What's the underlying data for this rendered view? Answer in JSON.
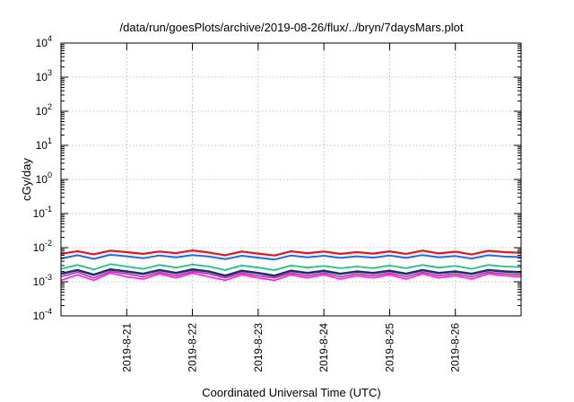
{
  "chart_data": {
    "type": "line",
    "title": "/data/run/goesPlots/archive/2019-08-26/flux/../bryn/7daysMars.plot",
    "xlabel": "Coordinated Universal Time (UTC)",
    "ylabel": "cGy/day",
    "yscale": "log",
    "ylim": [
      0.0001,
      10000
    ],
    "xlim": [
      "2019-08-20 00:00",
      "2019-08-27 00:00"
    ],
    "grid": true,
    "x_ticks": [
      {
        "x": "2019-08-21",
        "label": "2019-8-21"
      },
      {
        "x": "2019-08-22",
        "label": "2019-8-22"
      },
      {
        "x": "2019-08-23",
        "label": "2019-8-23"
      },
      {
        "x": "2019-08-24",
        "label": "2019-8-24"
      },
      {
        "x": "2019-08-25",
        "label": "2019-8-25"
      },
      {
        "x": "2019-08-26",
        "label": "2019-8-26"
      }
    ],
    "y_ticks": [
      {
        "value": 0.0001,
        "base": "10",
        "exp": "-4"
      },
      {
        "value": 0.001,
        "base": "10",
        "exp": "-3"
      },
      {
        "value": 0.01,
        "base": "10",
        "exp": "-2"
      },
      {
        "value": 0.1,
        "base": "10",
        "exp": "-1"
      },
      {
        "value": 1,
        "base": "10",
        "exp": "0"
      },
      {
        "value": 10,
        "base": "10",
        "exp": "1"
      },
      {
        "value": 100,
        "base": "10",
        "exp": "2"
      },
      {
        "value": 1000,
        "base": "10",
        "exp": "3"
      },
      {
        "value": 10000,
        "base": "10",
        "exp": "4"
      }
    ],
    "x": [
      "2019-08-20 00:00",
      "2019-08-20 06:00",
      "2019-08-20 12:00",
      "2019-08-20 18:00",
      "2019-08-21 00:00",
      "2019-08-21 06:00",
      "2019-08-21 12:00",
      "2019-08-21 18:00",
      "2019-08-22 00:00",
      "2019-08-22 06:00",
      "2019-08-22 12:00",
      "2019-08-22 18:00",
      "2019-08-23 00:00",
      "2019-08-23 06:00",
      "2019-08-23 12:00",
      "2019-08-23 18:00",
      "2019-08-24 00:00",
      "2019-08-24 06:00",
      "2019-08-24 12:00",
      "2019-08-24 18:00",
      "2019-08-25 00:00",
      "2019-08-25 06:00",
      "2019-08-25 12:00",
      "2019-08-25 18:00",
      "2019-08-26 00:00",
      "2019-08-26 06:00",
      "2019-08-26 12:00",
      "2019-08-26 18:00",
      "2019-08-27 00:00"
    ],
    "series": [
      {
        "color": "#e8141c",
        "width": 2.2,
        "values": [
          0.0066,
          0.0079,
          0.0064,
          0.0082,
          0.0074,
          0.0066,
          0.0077,
          0.0069,
          0.0083,
          0.0072,
          0.006,
          0.0077,
          0.0067,
          0.0059,
          0.0078,
          0.0069,
          0.0077,
          0.0066,
          0.0074,
          0.0067,
          0.0078,
          0.0066,
          0.0082,
          0.0068,
          0.0076,
          0.0063,
          0.0081,
          0.0074,
          0.0071
        ]
      },
      {
        "color": "#1e6af0",
        "width": 2.0,
        "values": [
          0.0048,
          0.006,
          0.0047,
          0.0062,
          0.0056,
          0.0049,
          0.0059,
          0.0052,
          0.0061,
          0.0055,
          0.0046,
          0.0058,
          0.0051,
          0.0045,
          0.0059,
          0.0052,
          0.0058,
          0.005,
          0.0056,
          0.0051,
          0.0059,
          0.005,
          0.0061,
          0.0052,
          0.0057,
          0.0048,
          0.006,
          0.0055,
          0.0053
        ]
      },
      {
        "color": "#19c484",
        "width": 1.8,
        "values": [
          0.0024,
          0.0031,
          0.0023,
          0.0033,
          0.0028,
          0.0024,
          0.0031,
          0.0026,
          0.0032,
          0.0028,
          0.0022,
          0.003,
          0.0026,
          0.0022,
          0.003,
          0.0026,
          0.0029,
          0.0025,
          0.0028,
          0.0025,
          0.003,
          0.0025,
          0.0031,
          0.0026,
          0.0029,
          0.0024,
          0.0031,
          0.0028,
          0.0027
        ]
      },
      {
        "color": "#28286e",
        "width": 2.6,
        "values": [
          0.0017,
          0.0022,
          0.0016,
          0.0023,
          0.002,
          0.0017,
          0.0022,
          0.0018,
          0.0023,
          0.002,
          0.0015,
          0.0021,
          0.0018,
          0.0015,
          0.0021,
          0.0018,
          0.0021,
          0.0017,
          0.002,
          0.0018,
          0.0021,
          0.0017,
          0.0022,
          0.0018,
          0.002,
          0.0017,
          0.0022,
          0.002,
          0.0019
        ]
      },
      {
        "color": "#c026a8",
        "width": 1.6,
        "values": [
          0.0014,
          0.0019,
          0.0013,
          0.002,
          0.0017,
          0.0014,
          0.0019,
          0.0015,
          0.002,
          0.0017,
          0.0013,
          0.0018,
          0.0015,
          0.0013,
          0.0018,
          0.0015,
          0.0018,
          0.0014,
          0.0017,
          0.0015,
          0.0018,
          0.0014,
          0.0019,
          0.0015,
          0.0017,
          0.0014,
          0.0019,
          0.0017,
          0.0016
        ]
      },
      {
        "color": "#ff19e0",
        "width": 1.6,
        "values": [
          0.0011,
          0.0016,
          0.0011,
          0.0018,
          0.0014,
          0.0012,
          0.0017,
          0.0013,
          0.0018,
          0.0014,
          0.0011,
          0.0016,
          0.0013,
          0.0011,
          0.0016,
          0.0013,
          0.0016,
          0.0012,
          0.0015,
          0.0013,
          0.0016,
          0.0012,
          0.0017,
          0.0013,
          0.0015,
          0.0012,
          0.0017,
          0.0015,
          0.0014
        ]
      }
    ]
  }
}
